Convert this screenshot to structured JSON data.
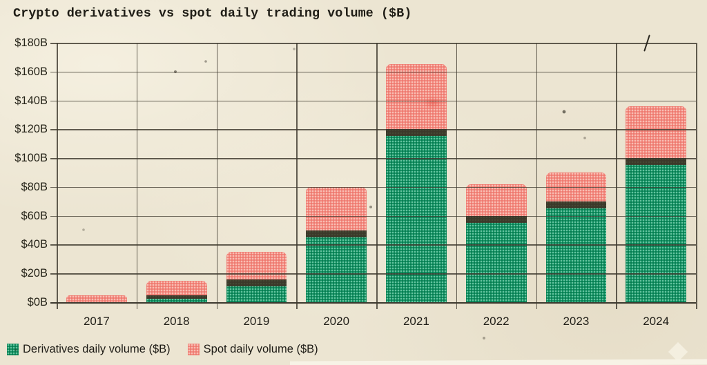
{
  "title": "Crypto derivatives vs spot daily trading volume ($B)",
  "legend": {
    "derivatives_label": "Derivatives daily volume ($B)",
    "spot_label": "Spot daily volume ($B)"
  },
  "colors": {
    "paper": "#ece5d2",
    "ink": "#201e17",
    "grid": "#403b30",
    "derivatives_green": "#0e9463",
    "spot_pink": "#f2897f",
    "overlap_band": "#3c392a"
  },
  "chart_data": {
    "type": "bar",
    "stacked": true,
    "title": "Crypto derivatives vs spot daily trading volume ($B)",
    "categories": [
      "2017",
      "2018",
      "2019",
      "2020",
      "2021",
      "2022",
      "2023",
      "2024"
    ],
    "series": [
      {
        "name": "Derivatives daily volume ($B)",
        "color": "#0e9463",
        "values": [
          0,
          5,
          16,
          50,
          120,
          60,
          70,
          100
        ]
      },
      {
        "name": "Spot daily volume ($B)",
        "color": "#f2897f",
        "values": [
          5,
          10,
          19,
          30,
          45,
          22,
          20,
          36
        ]
      }
    ],
    "totals": [
      5,
      15,
      35,
      80,
      165,
      82,
      90,
      136
    ],
    "xlabel": "",
    "ylabel": "",
    "ylim": [
      0,
      180
    ],
    "y_ticks": [
      "$180B",
      "$160B",
      "$140B",
      "$120B",
      "$100B",
      "$80B",
      "$60B",
      "$40B",
      "$20B",
      "$0B"
    ],
    "y_tick_values": [
      180,
      160,
      140,
      120,
      100,
      80,
      60,
      40,
      20,
      0
    ],
    "grid": true,
    "legend_position": "bottom-left"
  }
}
